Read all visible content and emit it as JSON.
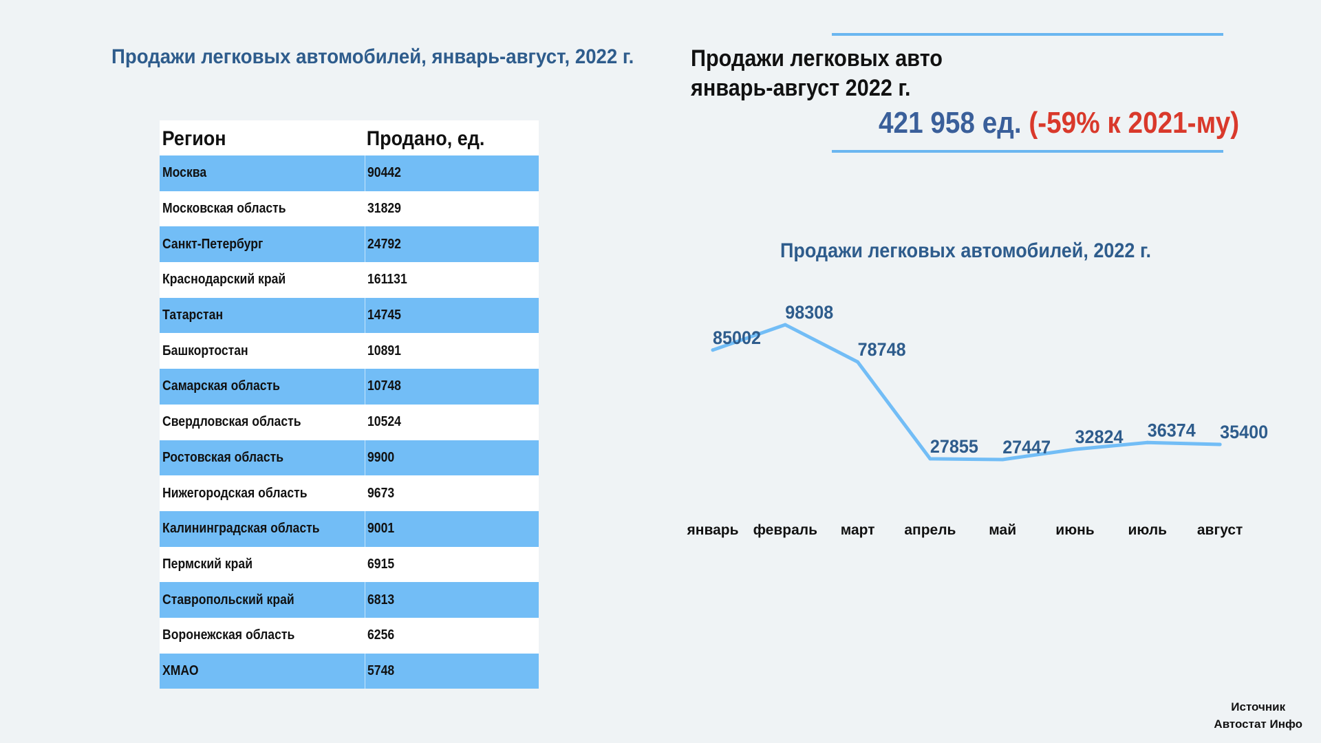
{
  "left_title": "Продажи легковых автомобилей, январь-август, 2022 г.",
  "table": {
    "headers": [
      "Регион",
      "Продано, ед."
    ],
    "rows": [
      {
        "region": "Москва",
        "sold": "90442"
      },
      {
        "region": "Московская область",
        "sold": "31829"
      },
      {
        "region": "Санкт-Петербург",
        "sold": "24792"
      },
      {
        "region": "Краснодарский край",
        "sold": "161131"
      },
      {
        "region": "Татарстан",
        "sold": "14745"
      },
      {
        "region": "Башкортостан",
        "sold": "10891"
      },
      {
        "region": "Самарская область",
        "sold": "10748"
      },
      {
        "region": "Свердловская область",
        "sold": "10524"
      },
      {
        "region": "Ростовская область",
        "sold": "9900"
      },
      {
        "region": "Нижегородская область",
        "sold": "9673"
      },
      {
        "region": "Калининградская область",
        "sold": "9001"
      },
      {
        "region": "Пермский край",
        "sold": "6915"
      },
      {
        "region": "Ставропольский край",
        "sold": "6813"
      },
      {
        "region": "Воронежская область",
        "sold": "6256"
      },
      {
        "region": "ХМАО",
        "sold": "5748"
      }
    ]
  },
  "summary": {
    "title_line1": "Продажи легковых авто",
    "title_line2": "январь-август 2022 г.",
    "value": "421 958 ед.",
    "change": "(-59% к 2021-му)"
  },
  "chart_data": {
    "type": "line",
    "title": "Продажи легковых автомобилей, 2022 г.",
    "categories": [
      "январь",
      "февраль",
      "март",
      "апрель",
      "май",
      "июнь",
      "июль",
      "август"
    ],
    "values": [
      85002,
      98308,
      78748,
      27855,
      27447,
      32824,
      36374,
      35400
    ],
    "data_labels": [
      "85002",
      "98308",
      "78748",
      "27855",
      "27447",
      "32824",
      "36374",
      "35400"
    ],
    "grid": false,
    "legend": "none",
    "colors": {
      "line": "#72bdf6",
      "label": "#2e5c8c"
    }
  },
  "source": {
    "line1": "Источник",
    "line2": "Автостат Инфо"
  },
  "colors": {
    "row_blue": "#72bdf6",
    "title_blue": "#2e5c8c",
    "accent_red": "#d9392b"
  }
}
